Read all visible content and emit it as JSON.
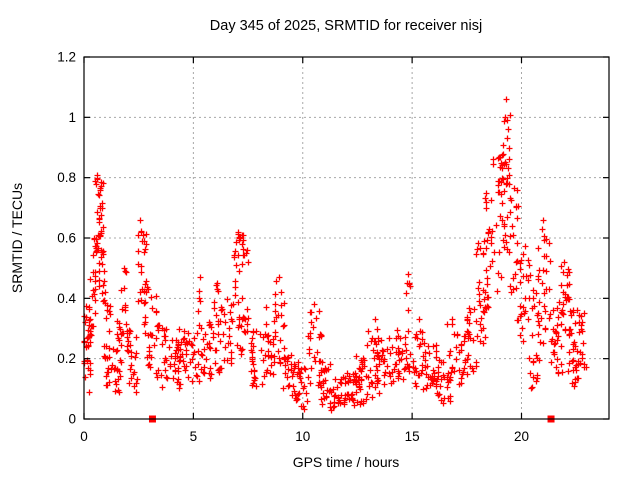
{
  "window": {
    "title": "Day 345 of 2025, SRMTID for receiver nisj"
  },
  "colors": {
    "marker": "#ff0000",
    "grid": "#a8a8a8",
    "axis": "#000000",
    "background": "#ffffff"
  },
  "chart_data": {
    "type": "scatter",
    "title": "Day 345 of 2025, SRMTID for receiver nisj",
    "xlabel": "GPS time / hours",
    "ylabel": "SRMTID / TECUs",
    "xlim": [
      0,
      24
    ],
    "ylim": [
      0,
      1.2
    ],
    "grid": true,
    "legend": "none",
    "x_ticks": [
      {
        "v": 0,
        "label": "0"
      },
      {
        "v": 5,
        "label": "5"
      },
      {
        "v": 10,
        "label": "10"
      },
      {
        "v": 15,
        "label": "15"
      },
      {
        "v": 20,
        "label": "20"
      }
    ],
    "y_ticks": [
      {
        "v": 0,
        "label": "0"
      },
      {
        "v": 0.2,
        "label": "0.2"
      },
      {
        "v": 0.4,
        "label": "0.4"
      },
      {
        "v": 0.6,
        "label": "0.6"
      },
      {
        "v": 0.8,
        "label": "0.8"
      },
      {
        "v": 1,
        "label": "1"
      },
      {
        "v": 1.2,
        "label": "1.2"
      }
    ],
    "series": [
      {
        "name": "SRMTID",
        "marker": "plus",
        "color": "#ff0000",
        "notable_points": [
          [
            0.05,
            0.14
          ],
          [
            0.25,
            0.09
          ],
          [
            0.6,
            0.81
          ],
          [
            0.55,
            0.78
          ],
          [
            0.72,
            0.76
          ],
          [
            1.85,
            0.5
          ],
          [
            2.56,
            0.66
          ],
          [
            2.62,
            0.62
          ],
          [
            5.3,
            0.47
          ],
          [
            5.25,
            0.4
          ],
          [
            6.1,
            0.45
          ],
          [
            7.02,
            0.62
          ],
          [
            7.1,
            0.6
          ],
          [
            7.45,
            0.56
          ],
          [
            8.9,
            0.47
          ],
          [
            10.5,
            0.38
          ],
          [
            13.3,
            0.33
          ],
          [
            14.8,
            0.48
          ],
          [
            14.85,
            0.45
          ],
          [
            15.3,
            0.33
          ],
          [
            16.8,
            0.33
          ],
          [
            18.4,
            0.75
          ],
          [
            19.15,
            0.88
          ],
          [
            19.25,
            1.0
          ],
          [
            19.3,
            1.06
          ],
          [
            19.33,
            0.99
          ],
          [
            19.4,
            0.96
          ],
          [
            21.0,
            0.66
          ],
          [
            20.95,
            0.63
          ],
          [
            21.95,
            0.52
          ]
        ],
        "density_bands": [
          [
            0.0,
            0.35,
            0.14,
            0.34,
            22
          ],
          [
            0.0,
            0.3,
            0.22,
            0.47,
            12
          ],
          [
            0.35,
            0.55,
            0.3,
            0.6,
            12
          ],
          [
            0.45,
            0.9,
            0.55,
            0.8,
            38
          ],
          [
            0.5,
            0.95,
            0.38,
            0.58,
            16
          ],
          [
            0.9,
            1.25,
            0.2,
            0.46,
            18
          ],
          [
            0.95,
            1.65,
            0.08,
            0.2,
            16
          ],
          [
            1.25,
            1.65,
            0.15,
            0.33,
            16
          ],
          [
            1.6,
            2.0,
            0.18,
            0.52,
            20
          ],
          [
            2.0,
            2.45,
            0.08,
            0.3,
            20
          ],
          [
            2.45,
            2.85,
            0.28,
            0.64,
            26
          ],
          [
            2.8,
            3.3,
            0.15,
            0.45,
            22
          ],
          [
            3.3,
            3.8,
            0.1,
            0.33,
            22
          ],
          [
            3.8,
            4.4,
            0.1,
            0.27,
            26
          ],
          [
            4.2,
            5.0,
            0.13,
            0.3,
            26
          ],
          [
            4.9,
            5.45,
            0.12,
            0.32,
            22
          ],
          [
            5.2,
            5.4,
            0.35,
            0.44,
            3
          ],
          [
            5.45,
            6.2,
            0.13,
            0.33,
            28
          ],
          [
            5.95,
            6.25,
            0.33,
            0.46,
            6
          ],
          [
            6.2,
            6.85,
            0.15,
            0.4,
            26
          ],
          [
            6.85,
            7.3,
            0.3,
            0.62,
            30
          ],
          [
            7.0,
            7.3,
            0.2,
            0.35,
            8
          ],
          [
            7.3,
            7.65,
            0.25,
            0.56,
            10
          ],
          [
            7.6,
            8.35,
            0.1,
            0.3,
            30
          ],
          [
            8.3,
            8.75,
            0.14,
            0.38,
            22
          ],
          [
            8.7,
            9.15,
            0.17,
            0.46,
            20
          ],
          [
            9.1,
            9.65,
            0.07,
            0.24,
            24
          ],
          [
            9.6,
            10.2,
            0.03,
            0.2,
            26
          ],
          [
            10.2,
            10.85,
            0.1,
            0.37,
            26
          ],
          [
            10.8,
            11.25,
            0.05,
            0.2,
            24
          ],
          [
            11.2,
            11.85,
            0.03,
            0.14,
            28
          ],
          [
            11.8,
            12.45,
            0.04,
            0.17,
            28
          ],
          [
            12.4,
            12.95,
            0.05,
            0.21,
            30
          ],
          [
            12.9,
            13.5,
            0.07,
            0.3,
            28
          ],
          [
            13.4,
            14.25,
            0.1,
            0.27,
            30
          ],
          [
            14.2,
            14.75,
            0.12,
            0.3,
            24
          ],
          [
            14.7,
            15.0,
            0.15,
            0.47,
            12
          ],
          [
            15.0,
            15.65,
            0.1,
            0.31,
            26
          ],
          [
            15.6,
            16.15,
            0.07,
            0.25,
            24
          ],
          [
            16.1,
            16.75,
            0.04,
            0.2,
            26
          ],
          [
            16.6,
            17.0,
            0.12,
            0.33,
            14
          ],
          [
            17.0,
            17.55,
            0.1,
            0.3,
            22
          ],
          [
            17.5,
            17.95,
            0.15,
            0.4,
            22
          ],
          [
            17.9,
            18.35,
            0.25,
            0.6,
            24
          ],
          [
            18.2,
            18.65,
            0.35,
            0.74,
            22
          ],
          [
            18.6,
            19.1,
            0.42,
            0.88,
            24
          ],
          [
            19.05,
            19.5,
            0.55,
            1.02,
            26
          ],
          [
            19.15,
            19.45,
            0.75,
            1.0,
            10
          ],
          [
            19.45,
            19.85,
            0.4,
            0.78,
            18
          ],
          [
            19.8,
            20.35,
            0.25,
            0.58,
            24
          ],
          [
            20.3,
            20.8,
            0.15,
            0.5,
            20
          ],
          [
            20.4,
            20.75,
            0.09,
            0.15,
            6
          ],
          [
            20.75,
            21.3,
            0.25,
            0.63,
            26
          ],
          [
            21.3,
            21.85,
            0.15,
            0.4,
            28
          ],
          [
            21.8,
            22.2,
            0.28,
            0.52,
            24
          ],
          [
            22.1,
            22.95,
            0.14,
            0.36,
            44
          ],
          [
            22.3,
            22.7,
            0.08,
            0.15,
            6
          ]
        ]
      },
      {
        "name": "flag markers",
        "marker": "filled-square",
        "color": "#ff0000",
        "points": [
          [
            3.13,
            0.0
          ],
          [
            21.35,
            0.0
          ]
        ]
      }
    ]
  }
}
